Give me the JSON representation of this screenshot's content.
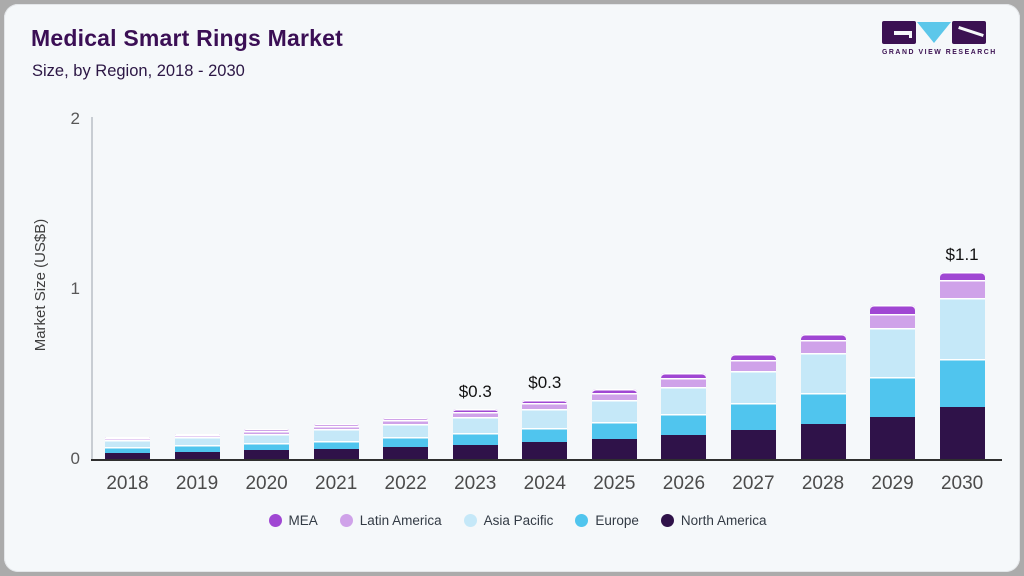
{
  "header": {
    "title": "Medical Smart Rings Market",
    "subtitle": "Size, by Region, 2018 - 2030"
  },
  "logo": {
    "text": "GRAND VIEW RESEARCH"
  },
  "chart_data": {
    "type": "bar",
    "stacked": true,
    "title": "Medical Smart Rings Market Size, by Region, 2018 - 2030",
    "ylabel": "Market Size (US$B)",
    "ylim": [
      0,
      2
    ],
    "yticks": [
      0,
      1,
      2
    ],
    "grid": false,
    "legend_position": "bottom",
    "categories": [
      "2018",
      "2019",
      "2020",
      "2021",
      "2022",
      "2023",
      "2024",
      "2025",
      "2026",
      "2027",
      "2028",
      "2029",
      "2030"
    ],
    "series": [
      {
        "name": "North America",
        "color": "#2f1249",
        "values": [
          0.038,
          0.044,
          0.051,
          0.059,
          0.071,
          0.084,
          0.1,
          0.118,
          0.143,
          0.17,
          0.205,
          0.25,
          0.305
        ]
      },
      {
        "name": "Europe",
        "color": "#50c5ee",
        "values": [
          0.031,
          0.036,
          0.042,
          0.049,
          0.058,
          0.071,
          0.085,
          0.102,
          0.124,
          0.158,
          0.185,
          0.23,
          0.285
        ]
      },
      {
        "name": "Asia Pacific",
        "color": "#c5e8f8",
        "values": [
          0.043,
          0.049,
          0.057,
          0.066,
          0.078,
          0.093,
          0.11,
          0.13,
          0.157,
          0.192,
          0.235,
          0.29,
          0.355
        ]
      },
      {
        "name": "Latin America",
        "color": "#cfa2e9",
        "values": [
          0.012,
          0.014,
          0.017,
          0.02,
          0.024,
          0.028,
          0.034,
          0.041,
          0.052,
          0.062,
          0.073,
          0.086,
          0.107
        ]
      },
      {
        "name": "MEA",
        "color": "#a047d3",
        "values": [
          0.006,
          0.007,
          0.008,
          0.01,
          0.013,
          0.016,
          0.019,
          0.023,
          0.028,
          0.034,
          0.04,
          0.048,
          0.048
        ]
      }
    ],
    "bar_labels": {
      "2023": "$0.3",
      "2024": "$0.3",
      "2030": "$1.1"
    },
    "legend_order": [
      "MEA",
      "Latin America",
      "Asia Pacific",
      "Europe",
      "North America"
    ]
  },
  "colors": {
    "card_background": "#f5f8fa",
    "outer_background": "#ababab",
    "title": "#3b0f55",
    "axis_line": "#c8cdd3",
    "baseline": "#2f2f2f",
    "logo_purple": "#3b1152",
    "logo_blue": "#5cc7ea"
  }
}
